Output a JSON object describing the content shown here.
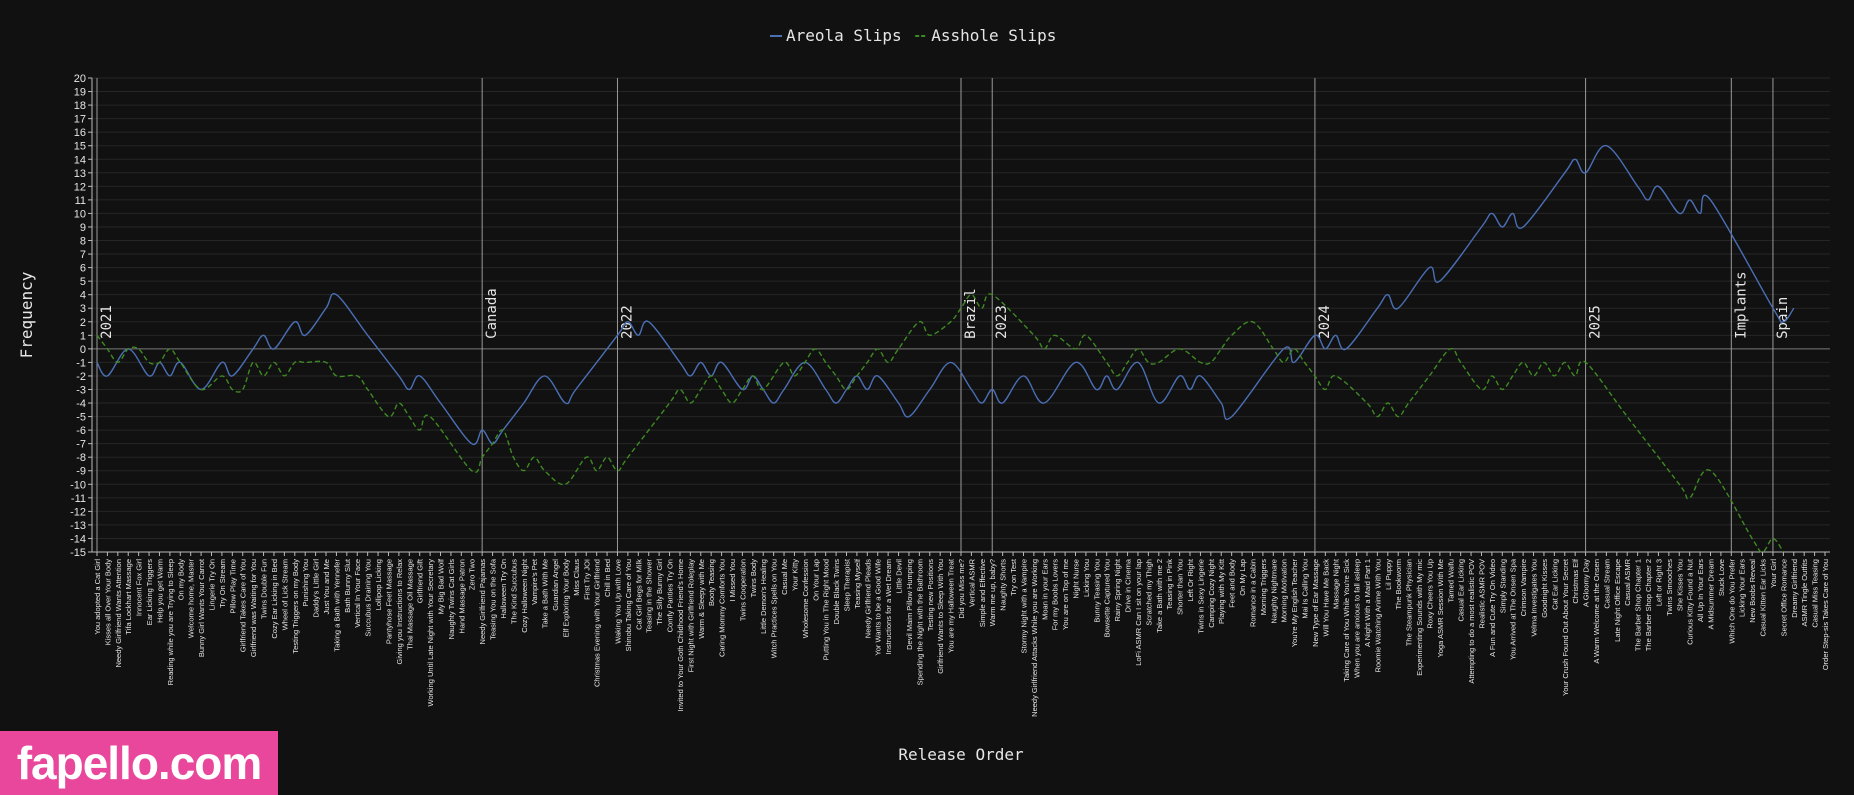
{
  "chart_data": {
    "type": "line",
    "xlabel": "Release Order",
    "ylabel": "Frequency",
    "ylim": [
      -15,
      20
    ],
    "grid": true,
    "legend_position": "top-center",
    "series": [
      {
        "name": "Areola Slips",
        "color": "#4a6fb5",
        "style": "solid"
      },
      {
        "name": "Asshole Slips",
        "color": "#3e8a22",
        "style": "dashed"
      }
    ],
    "categories": [
      "You adopted a Cat Girl",
      "Kisses all Over Your Body",
      "Needy Girlfriend Wants Attention",
      "Tifa Lockhart Massage",
      "Innocent Fox Girl",
      "Ear Licking Triggers",
      "Help you get Warm",
      "Reading while you are Trying to Sleep",
      "On my Body",
      "Welcome home, Master",
      "Bunny Girl Wants Your Carrot",
      "Lingerie Try On",
      "Try On Stream",
      "Pillow Play Time",
      "Girlfriend Takes Care of You",
      "Girlfriend was Waiting for You",
      "Twins Double Fun",
      "Cozy Ear Licking in Bed",
      "Wheel of Lick Stream",
      "Testing Triggers on my Body",
      "Punishing You",
      "Daddy's Little Girl",
      "Just You and Me",
      "Taking a Bath with Yennefer",
      "Bath Bunny Slut",
      "Vertical In Your Face",
      "Succubus Draining You",
      "Lollipop Licking",
      "Pantyhose Feet Massage",
      "Giving you Instructions to Relax",
      "Thai Massage Oil Massage",
      "Girlfriend Gift",
      "Working Until Late Night with Your Secretary",
      "My Big Bad Wolf",
      "Naughty Twins Cat Girls",
      "Hand Massage Patron",
      "Zero Two",
      "Needy Girlfriend Pajamas",
      "Teasing You on the Sofa",
      "Halloween Try On",
      "The Kind Succubus",
      "Cozy Halloween Night",
      "Vampire's Pet",
      "Take a Bath With Me",
      "Guardian Angel",
      "Elf Exploring Your Body",
      "Miss Claus",
      "First Try JOI",
      "Christmas Evening with Your Girlfriend",
      "Chill in Bed",
      "Waking You Up with Love",
      "Shinobu Taking Care of You",
      "Cat Girl Begs for Milk",
      "Teasing in the Shower",
      "The Silly Bunny Girl",
      "Comfy Panties Try On",
      "Invited to Your Goth Childhood Friend's Home",
      "First Night with Girlfriend Roleplay",
      "Warm & Sleepy with Me",
      "Booty Teasing",
      "Caring Mommy Comforts You",
      "I Missed You",
      "Twins Cooperation",
      "Twins Body",
      "Little Demon's Healing",
      "Witch Practices Spells on You",
      "Casual Me",
      "Your Kitty",
      "Wholesome Confession",
      "On Your Lap",
      "Putting You in The Right Mood",
      "Double Black Twins",
      "Sleep Therapist",
      "Teasing Myself",
      "Needy Girlfriend Pleads",
      "Yor Wants to be a Good Wife",
      "Instructions for a Wet Dream",
      "Little Devil",
      "Devil Maim Pillow Humping",
      "Spending the Night with the Bathroom",
      "Testing new Positions",
      "Girlfriend Wants to Sleep With You",
      "You are my Halloween Treat",
      "Did you Miss me?",
      "Vertical ASMR",
      "Simple and Effective",
      "Warm me up, baby?",
      "Naughty Shorts",
      "Try on Test",
      "Stormy Night with a Vampire",
      "Needy Girlfriend Attacks While you are Working",
      "Moan in your Ears",
      "For my Boobs Lovers",
      "You are on Top of me",
      "Night Nurse",
      "Licking You",
      "Bunny Teasing You",
      "Bowsette Captured You",
      "Rainy Spring Night",
      "Drive in Cinema",
      "LoFi ASMR Can I sit on your lap",
      "Scratched my Thigh",
      "Take a Bath with me 2",
      "Teasing in Pink",
      "Shorter than You",
      "Left Or Right",
      "Twins in Sexy Lingerie",
      "Camping Cozy Night",
      "Playing with My Kitt",
      "Feet and Body",
      "On My Lap",
      "Romance in a Cabin",
      "Morning Triggers",
      "Naughty Nightmare",
      "Morning Motivation",
      "You're My English Teacher",
      "Mai Is Calling You",
      "New Type of Ear Massage",
      "Will You Have Me Back",
      "Massage Night",
      "Taking Care of You While You're Sick",
      "When you are anxious to fall asleep",
      "A Night With a Maid Part 1",
      "Roomie Watching Anime With You",
      "Lil Puppy",
      "The Bookworm",
      "The Steampunk Physician",
      "Experimenting Sounds with My mic",
      "Roxy Cheers You Up",
      "Yoga ASMR Session With Me",
      "Tamed Waifu",
      "Casual Ear Licking",
      "Attempting to do a most realistic POV",
      "Realistic ASMR POV",
      "A Fun and Cute Try On Video",
      "Simply Standing",
      "You Arrived at The Onsen Spa",
      "Crimson Vampire",
      "Velma Investigates You",
      "Goodnight Kisses",
      "Cat Ear Licking",
      "Your Crush Found Out About Your Secret",
      "Christmas Elf",
      "A Gloomy Day",
      "A Warm Welcome at the Onsen",
      "Casual Stream",
      "Late Night Office Escape",
      "Casual ASMR",
      "The Barber Shop Chapter 1",
      "The Barber Shop Chapter 2",
      "Left or Right 3",
      "Twins Smooches",
      "She Kisses You",
      "Curious Kitty Found a Nut",
      "All Up In Your Ears",
      "A Midsummer Dream",
      "Stuck Love",
      "Which One do You Prefer",
      "Licking Your Ears",
      "New Boobs Reveal",
      "Casual Kitten Ear Licks",
      "Your Girl",
      "Secret Office Romance",
      "Dreamy Girlfriend",
      "ASMR Tingle Outfits",
      "Casual Miss Teasing",
      "Order Step-sis Takes Care of You"
    ],
    "vlines": [
      {
        "label": "2021",
        "x": 0
      },
      {
        "label": "Canada",
        "x": 37
      },
      {
        "label": "2022",
        "x": 50
      },
      {
        "label": "Brazil",
        "x": 83
      },
      {
        "label": "2023",
        "x": 86
      },
      {
        "label": "2024",
        "x": 117
      },
      {
        "label": "2025",
        "x": 143
      },
      {
        "label": "Implants",
        "x": 157
      },
      {
        "label": "Spain",
        "x": 161
      }
    ],
    "series_values": [
      [
        [
          0,
          -1
        ],
        [
          1,
          -2
        ],
        [
          3,
          0
        ],
        [
          5,
          -2
        ],
        [
          6,
          -1
        ],
        [
          7,
          -2
        ],
        [
          8,
          -1
        ],
        [
          10,
          -3
        ],
        [
          12,
          -1
        ],
        [
          13,
          -2
        ],
        [
          15,
          0
        ],
        [
          16,
          1
        ],
        [
          17,
          0
        ],
        [
          19,
          2
        ],
        [
          20,
          1
        ],
        [
          22,
          3
        ],
        [
          23,
          4
        ],
        [
          26,
          1
        ],
        [
          29,
          -2
        ],
        [
          30,
          -3
        ],
        [
          31,
          -2
        ],
        [
          33,
          -4
        ],
        [
          36,
          -7
        ],
        [
          37,
          -6
        ],
        [
          38,
          -7
        ],
        [
          39,
          -6
        ],
        [
          41,
          -4
        ],
        [
          43,
          -2
        ],
        [
          45,
          -4
        ],
        [
          46,
          -3
        ],
        [
          50,
          1
        ],
        [
          51,
          2
        ],
        [
          52,
          1
        ],
        [
          53,
          2
        ],
        [
          56,
          -1
        ],
        [
          57,
          -2
        ],
        [
          58,
          -1
        ],
        [
          59,
          -2
        ],
        [
          60,
          -1
        ],
        [
          62,
          -3
        ],
        [
          63,
          -2
        ],
        [
          64,
          -3
        ],
        [
          65,
          -4
        ],
        [
          66,
          -3
        ],
        [
          68,
          -1
        ],
        [
          70,
          -3
        ],
        [
          71,
          -4
        ],
        [
          72,
          -3
        ],
        [
          73,
          -2
        ],
        [
          74,
          -3
        ],
        [
          75,
          -2
        ],
        [
          77,
          -4
        ],
        [
          78,
          -5
        ],
        [
          80,
          -3
        ],
        [
          82,
          -1
        ],
        [
          84,
          -3
        ],
        [
          85,
          -4
        ],
        [
          86,
          -3
        ],
        [
          87,
          -4
        ],
        [
          89,
          -2
        ],
        [
          91,
          -4
        ],
        [
          94,
          -1
        ],
        [
          96,
          -3
        ],
        [
          97,
          -2
        ],
        [
          98,
          -3
        ],
        [
          100,
          -1
        ],
        [
          102,
          -4
        ],
        [
          104,
          -2
        ],
        [
          105,
          -3
        ],
        [
          106,
          -2
        ],
        [
          108,
          -4
        ],
        [
          109,
          -5
        ],
        [
          114,
          0
        ],
        [
          115,
          -1
        ],
        [
          117,
          1
        ],
        [
          118,
          0
        ],
        [
          119,
          1
        ],
        [
          120,
          0
        ],
        [
          123,
          3
        ],
        [
          124,
          4
        ],
        [
          125,
          3
        ],
        [
          128,
          6
        ],
        [
          129,
          5
        ],
        [
          133,
          9
        ],
        [
          134,
          10
        ],
        [
          135,
          9
        ],
        [
          136,
          10
        ],
        [
          137,
          9
        ],
        [
          141,
          13
        ],
        [
          142,
          14
        ],
        [
          143,
          13
        ],
        [
          145,
          15
        ],
        [
          148,
          12
        ],
        [
          149,
          11
        ],
        [
          150,
          12
        ],
        [
          152,
          10
        ],
        [
          153,
          11
        ],
        [
          154,
          10
        ],
        [
          155,
          11
        ],
        [
          161,
          3
        ],
        [
          162,
          2
        ],
        [
          163,
          3
        ]
      ],
      [
        [
          0,
          1
        ],
        [
          1,
          0
        ],
        [
          2,
          -1
        ],
        [
          3,
          0
        ],
        [
          4,
          0
        ],
        [
          5,
          -1
        ],
        [
          6,
          -1
        ],
        [
          7,
          0
        ],
        [
          8,
          -1
        ],
        [
          10,
          -3
        ],
        [
          12,
          -2
        ],
        [
          13,
          -3
        ],
        [
          14,
          -3
        ],
        [
          15,
          -1
        ],
        [
          16,
          -2
        ],
        [
          17,
          -1
        ],
        [
          18,
          -2
        ],
        [
          19,
          -1
        ],
        [
          20,
          -1
        ],
        [
          22,
          -1
        ],
        [
          23,
          -2
        ],
        [
          25,
          -2
        ],
        [
          26,
          -3
        ],
        [
          28,
          -5
        ],
        [
          29,
          -4
        ],
        [
          30,
          -5
        ],
        [
          31,
          -6
        ],
        [
          32,
          -5
        ],
        [
          36,
          -9
        ],
        [
          37,
          -8
        ],
        [
          38,
          -7
        ],
        [
          39,
          -6
        ],
        [
          40,
          -8
        ],
        [
          41,
          -9
        ],
        [
          42,
          -8
        ],
        [
          43,
          -9
        ],
        [
          45,
          -10
        ],
        [
          47,
          -8
        ],
        [
          48,
          -9
        ],
        [
          49,
          -8
        ],
        [
          50,
          -9
        ],
        [
          51,
          -8
        ],
        [
          55,
          -4
        ],
        [
          56,
          -3
        ],
        [
          57,
          -4
        ],
        [
          58,
          -3
        ],
        [
          59,
          -2
        ],
        [
          60,
          -3
        ],
        [
          61,
          -4
        ],
        [
          62,
          -3
        ],
        [
          63,
          -2
        ],
        [
          64,
          -3
        ],
        [
          66,
          -1
        ],
        [
          67,
          -2
        ],
        [
          68,
          -1
        ],
        [
          69,
          0
        ],
        [
          70,
          -1
        ],
        [
          71,
          -2
        ],
        [
          72,
          -3
        ],
        [
          73,
          -2
        ],
        [
          74,
          -1
        ],
        [
          75,
          0
        ],
        [
          76,
          -1
        ],
        [
          77,
          0
        ],
        [
          79,
          2
        ],
        [
          80,
          1
        ],
        [
          82,
          2
        ],
        [
          83,
          3
        ],
        [
          84,
          4
        ],
        [
          85,
          3
        ],
        [
          86,
          4
        ],
        [
          90,
          1
        ],
        [
          91,
          0
        ],
        [
          92,
          1
        ],
        [
          94,
          0
        ],
        [
          95,
          1
        ],
        [
          97,
          -1
        ],
        [
          98,
          -2
        ],
        [
          99,
          -1
        ],
        [
          100,
          0
        ],
        [
          101,
          -1
        ],
        [
          102,
          -1
        ],
        [
          104,
          0
        ],
        [
          106,
          -1
        ],
        [
          107,
          -1
        ],
        [
          108,
          0
        ],
        [
          109,
          1
        ],
        [
          111,
          2
        ],
        [
          113,
          0
        ],
        [
          114,
          -1
        ],
        [
          115,
          0
        ],
        [
          116,
          -1
        ],
        [
          117,
          -2
        ],
        [
          118,
          -3
        ],
        [
          119,
          -2
        ],
        [
          122,
          -4
        ],
        [
          123,
          -5
        ],
        [
          124,
          -4
        ],
        [
          125,
          -5
        ],
        [
          126,
          -4
        ],
        [
          128,
          -2
        ],
        [
          130,
          0
        ],
        [
          131,
          -1
        ],
        [
          133,
          -3
        ],
        [
          134,
          -2
        ],
        [
          135,
          -3
        ],
        [
          136,
          -2
        ],
        [
          137,
          -1
        ],
        [
          138,
          -2
        ],
        [
          139,
          -1
        ],
        [
          140,
          -2
        ],
        [
          141,
          -1
        ],
        [
          142,
          -2
        ],
        [
          143,
          -1
        ],
        [
          147,
          -5
        ],
        [
          152,
          -10
        ],
        [
          153,
          -11
        ],
        [
          155,
          -9
        ],
        [
          159,
          -14
        ],
        [
          160,
          -15
        ],
        [
          161,
          -14
        ],
        [
          162,
          -15
        ]
      ]
    ]
  },
  "watermark": "fapello.com"
}
